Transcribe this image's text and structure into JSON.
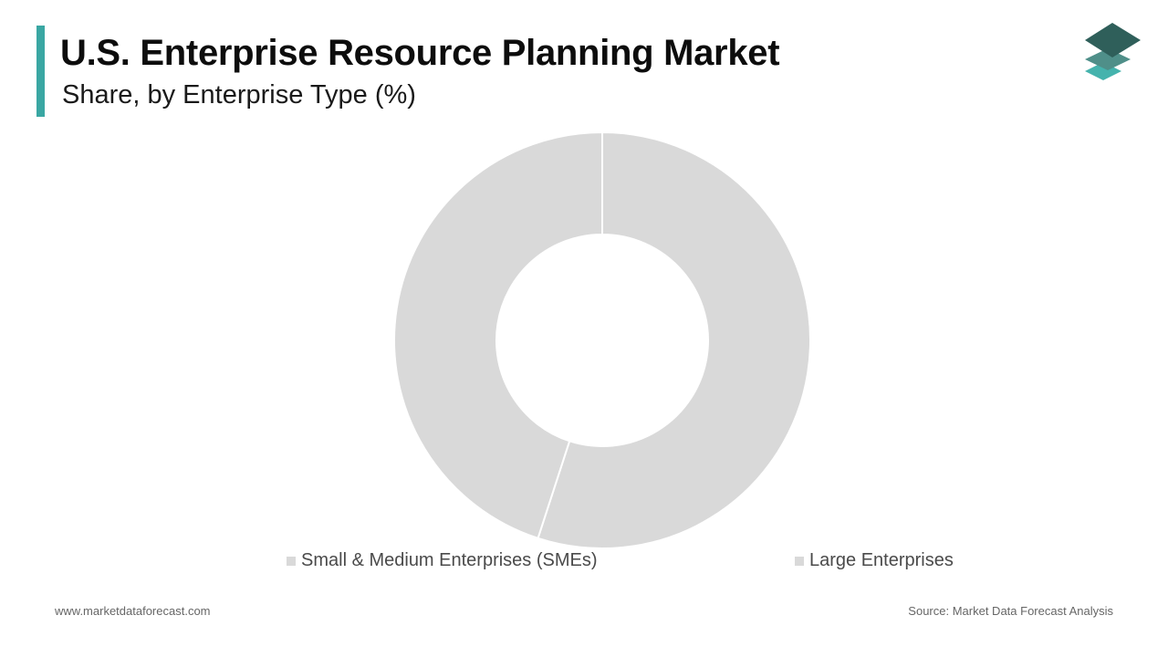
{
  "header": {
    "title": "U.S. Enterprise Resource Planning Market",
    "subtitle": "Share, by Enterprise Type (%)"
  },
  "colors": {
    "accent": "#3aa7a3",
    "slice_fill": "#d9d9d9",
    "slice_separator": "#ffffff",
    "legend_swatch": "#d9d9d9",
    "logo_top": "#2f5f5a",
    "logo_middle": "#4f8f89",
    "logo_bottom": "#45b3ad"
  },
  "logo": {
    "icon": "stacked-layers-icon"
  },
  "chart_data": {
    "type": "pie",
    "variant": "donut",
    "title": "U.S. Enterprise Resource Planning Market",
    "subtitle": "Share, by Enterprise Type (%)",
    "categories": [
      "Small & Medium Enterprises (SMEs)",
      "Large Enterprises"
    ],
    "values": [
      55,
      45
    ],
    "unit": "%",
    "data_labels": false,
    "legend_position": "bottom"
  },
  "footer": {
    "website": "www.marketdataforecast.com",
    "source": "Source: Market Data Forecast Analysis"
  }
}
